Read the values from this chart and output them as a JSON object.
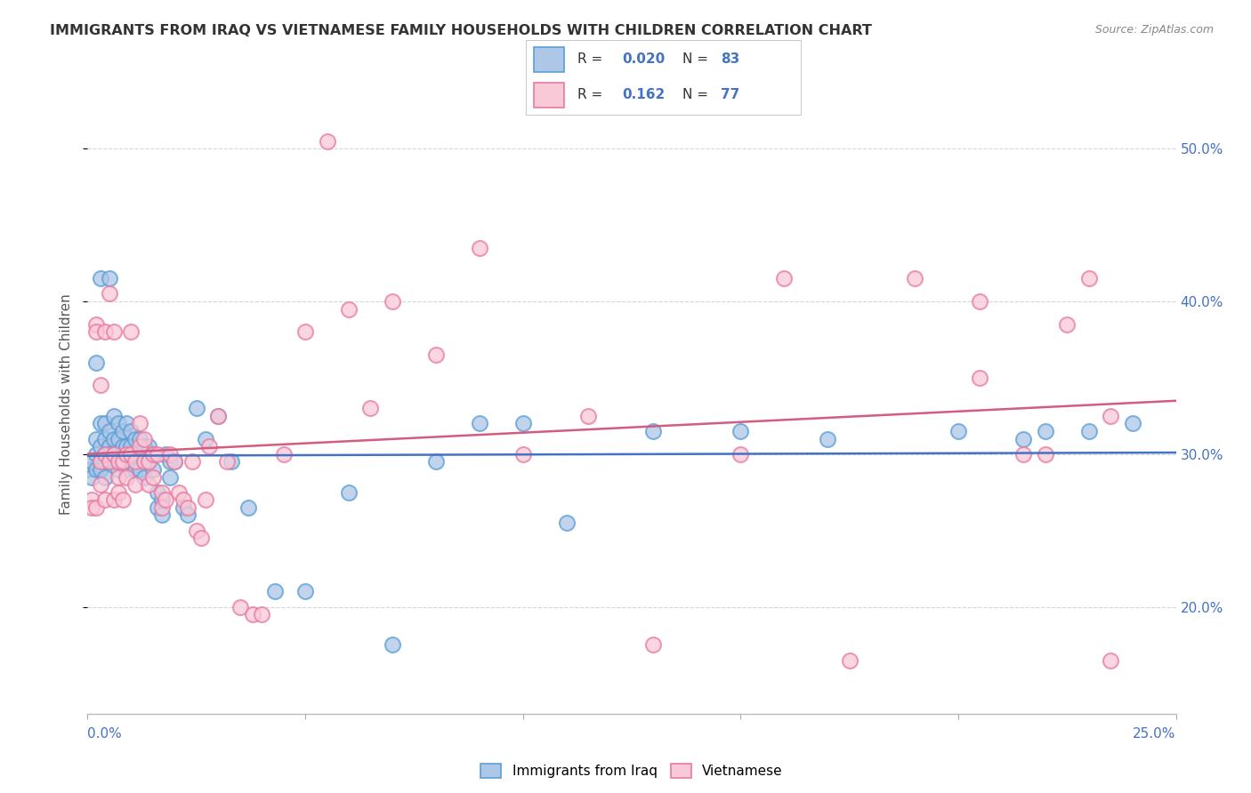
{
  "title": "IMMIGRANTS FROM IRAQ VS VIETNAMESE FAMILY HOUSEHOLDS WITH CHILDREN CORRELATION CHART",
  "source": "Source: ZipAtlas.com",
  "ylabel": "Family Households with Children",
  "blue_color": "#aec6e8",
  "blue_edge_color": "#5a9fd4",
  "pink_color": "#f9c9d8",
  "pink_edge_color": "#e87aa0",
  "blue_line_color": "#4472c4",
  "pink_line_color": "#d45b82",
  "axis_label_color": "#4472c4",
  "title_color": "#333333",
  "source_color": "#888888",
  "background_color": "#ffffff",
  "grid_color": "#cccccc",
  "x_min": 0.0,
  "x_max": 0.25,
  "y_min": 0.13,
  "y_max": 0.535,
  "y_ticks": [
    0.2,
    0.3,
    0.4,
    0.5
  ],
  "y_tick_labels": [
    "20.0%",
    "30.0%",
    "40.0%",
    "50.0%"
  ],
  "legend_r1": "R = 0.020",
  "legend_n1": "N = 83",
  "legend_r2": "R =  0.162",
  "legend_n2": "N = 77",
  "iraq_x": [
    0.0,
    0.001,
    0.001,
    0.002,
    0.002,
    0.002,
    0.002,
    0.003,
    0.003,
    0.003,
    0.003,
    0.003,
    0.004,
    0.004,
    0.004,
    0.004,
    0.004,
    0.005,
    0.005,
    0.005,
    0.005,
    0.005,
    0.006,
    0.006,
    0.006,
    0.006,
    0.007,
    0.007,
    0.007,
    0.007,
    0.008,
    0.008,
    0.008,
    0.009,
    0.009,
    0.009,
    0.01,
    0.01,
    0.01,
    0.011,
    0.011,
    0.011,
    0.012,
    0.012,
    0.012,
    0.013,
    0.013,
    0.013,
    0.014,
    0.014,
    0.015,
    0.015,
    0.016,
    0.016,
    0.017,
    0.017,
    0.018,
    0.019,
    0.019,
    0.02,
    0.022,
    0.023,
    0.025,
    0.027,
    0.03,
    0.033,
    0.037,
    0.043,
    0.05,
    0.06,
    0.07,
    0.08,
    0.09,
    0.1,
    0.11,
    0.13,
    0.15,
    0.17,
    0.2,
    0.215,
    0.22,
    0.23,
    0.24
  ],
  "iraq_y": [
    0.29,
    0.295,
    0.285,
    0.36,
    0.31,
    0.3,
    0.29,
    0.415,
    0.32,
    0.305,
    0.295,
    0.29,
    0.32,
    0.31,
    0.3,
    0.295,
    0.285,
    0.415,
    0.315,
    0.305,
    0.3,
    0.295,
    0.325,
    0.31,
    0.3,
    0.295,
    0.32,
    0.31,
    0.295,
    0.29,
    0.315,
    0.305,
    0.295,
    0.32,
    0.305,
    0.29,
    0.315,
    0.305,
    0.295,
    0.31,
    0.3,
    0.29,
    0.31,
    0.3,
    0.29,
    0.305,
    0.295,
    0.285,
    0.305,
    0.295,
    0.3,
    0.29,
    0.275,
    0.265,
    0.27,
    0.26,
    0.3,
    0.295,
    0.285,
    0.295,
    0.265,
    0.26,
    0.33,
    0.31,
    0.325,
    0.295,
    0.265,
    0.21,
    0.21,
    0.275,
    0.175,
    0.295,
    0.32,
    0.32,
    0.255,
    0.315,
    0.315,
    0.31,
    0.315,
    0.31,
    0.315,
    0.315,
    0.32
  ],
  "viet_x": [
    0.001,
    0.001,
    0.002,
    0.002,
    0.002,
    0.003,
    0.003,
    0.003,
    0.004,
    0.004,
    0.004,
    0.005,
    0.005,
    0.006,
    0.006,
    0.006,
    0.007,
    0.007,
    0.007,
    0.008,
    0.008,
    0.009,
    0.009,
    0.01,
    0.01,
    0.011,
    0.011,
    0.012,
    0.012,
    0.013,
    0.013,
    0.014,
    0.014,
    0.015,
    0.015,
    0.016,
    0.017,
    0.017,
    0.018,
    0.019,
    0.02,
    0.021,
    0.022,
    0.023,
    0.024,
    0.025,
    0.026,
    0.027,
    0.028,
    0.03,
    0.032,
    0.035,
    0.038,
    0.04,
    0.045,
    0.05,
    0.055,
    0.06,
    0.065,
    0.07,
    0.08,
    0.09,
    0.1,
    0.115,
    0.13,
    0.15,
    0.16,
    0.175,
    0.19,
    0.205,
    0.215,
    0.225,
    0.235,
    0.23,
    0.205,
    0.22,
    0.235
  ],
  "viet_y": [
    0.27,
    0.265,
    0.385,
    0.38,
    0.265,
    0.295,
    0.345,
    0.28,
    0.38,
    0.3,
    0.27,
    0.405,
    0.295,
    0.38,
    0.3,
    0.27,
    0.295,
    0.285,
    0.275,
    0.295,
    0.27,
    0.3,
    0.285,
    0.38,
    0.3,
    0.295,
    0.28,
    0.32,
    0.305,
    0.31,
    0.295,
    0.295,
    0.28,
    0.3,
    0.285,
    0.3,
    0.275,
    0.265,
    0.27,
    0.3,
    0.295,
    0.275,
    0.27,
    0.265,
    0.295,
    0.25,
    0.245,
    0.27,
    0.305,
    0.325,
    0.295,
    0.2,
    0.195,
    0.195,
    0.3,
    0.38,
    0.505,
    0.395,
    0.33,
    0.4,
    0.365,
    0.435,
    0.3,
    0.325,
    0.175,
    0.3,
    0.415,
    0.165,
    0.415,
    0.35,
    0.3,
    0.385,
    0.165,
    0.415,
    0.4,
    0.3,
    0.325
  ]
}
